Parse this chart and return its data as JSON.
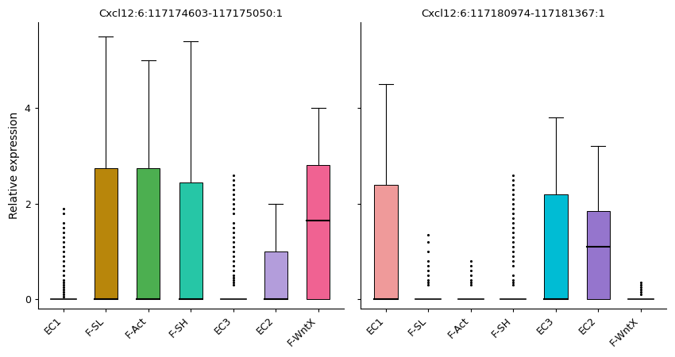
{
  "subplot_titles": [
    "Cxcl12:6:117174603-117175050:1",
    "Cxcl12:6:117180974-117181367:1"
  ],
  "ylabel": "Relative expression",
  "categories": [
    "EC1",
    "F-SL",
    "F-Act",
    "F-SH",
    "EC3",
    "EC2",
    "F-WntX"
  ],
  "cat_colors_p1": {
    "EC1": "#C0392B",
    "F-SL": "#B8860B",
    "F-Act": "#4CAF50",
    "F-SH": "#26C6A6",
    "EC3": "#9B7ED9",
    "EC2": "#B39DDB",
    "F-WntX": "#F06292"
  },
  "cat_colors_p2": {
    "EC1": "#EF9A9A",
    "F-SL": "#B8860B",
    "F-Act": "#4CAF50",
    "F-SH": "#26C6A6",
    "EC3": "#00BCD4",
    "EC2": "#9575CD",
    "F-WntX": "#9B7ED9"
  },
  "panel1": {
    "EC1": {
      "q1": 0.0,
      "med": 0.0,
      "q3": 0.0,
      "whislo": 0.0,
      "whishi": 0.0,
      "show_box": false,
      "fliers": [
        1.9,
        1.8,
        1.6,
        1.5,
        1.4,
        1.3,
        1.2,
        1.1,
        1.0,
        0.9,
        0.8,
        0.7,
        0.6,
        0.5,
        0.4,
        0.35,
        0.3,
        0.25,
        0.2,
        0.15,
        0.1,
        0.05
      ]
    },
    "F-SL": {
      "q1": 0.0,
      "med": 0.0,
      "q3": 2.75,
      "whislo": 0.0,
      "whishi": 5.5,
      "show_box": true,
      "fliers": []
    },
    "F-Act": {
      "q1": 0.0,
      "med": 0.0,
      "q3": 2.75,
      "whislo": 0.0,
      "whishi": 5.0,
      "show_box": true,
      "fliers": []
    },
    "F-SH": {
      "q1": 0.0,
      "med": 0.0,
      "q3": 2.45,
      "whislo": 0.0,
      "whishi": 5.4,
      "show_box": true,
      "fliers": []
    },
    "EC3": {
      "q1": 0.0,
      "med": 0.0,
      "q3": 0.0,
      "whislo": 0.0,
      "whishi": 0.0,
      "show_box": false,
      "fliers": [
        2.6,
        2.5,
        2.4,
        2.3,
        2.2,
        2.1,
        2.0,
        1.9,
        1.8,
        1.6,
        1.5,
        1.4,
        1.3,
        1.2,
        1.1,
        1.0,
        0.9,
        0.8,
        0.7,
        0.6,
        0.5,
        0.45,
        0.4,
        0.35,
        0.3
      ]
    },
    "EC2": {
      "q1": 0.0,
      "med": 0.0,
      "q3": 1.0,
      "whislo": 0.0,
      "whishi": 2.0,
      "show_box": true,
      "fliers": []
    },
    "F-WntX": {
      "q1": 0.0,
      "med": 1.65,
      "q3": 2.8,
      "whislo": 0.0,
      "whishi": 4.0,
      "show_box": true,
      "fliers": []
    }
  },
  "panel2": {
    "EC1": {
      "q1": 0.0,
      "med": 0.0,
      "q3": 2.4,
      "whislo": 0.0,
      "whishi": 4.5,
      "show_box": true,
      "fliers": []
    },
    "F-SL": {
      "q1": 0.0,
      "med": 0.0,
      "q3": 0.0,
      "whislo": 0.0,
      "whishi": 0.0,
      "show_box": false,
      "fliers": [
        1.35,
        1.2,
        1.0,
        0.8,
        0.7,
        0.6,
        0.5,
        0.4,
        0.35,
        0.3
      ]
    },
    "F-Act": {
      "q1": 0.0,
      "med": 0.0,
      "q3": 0.0,
      "whislo": 0.0,
      "whishi": 0.0,
      "show_box": false,
      "fliers": [
        0.8,
        0.7,
        0.6,
        0.5,
        0.4,
        0.35,
        0.3
      ]
    },
    "F-SH": {
      "q1": 0.0,
      "med": 0.0,
      "q3": 0.0,
      "whislo": 0.0,
      "whishi": 0.0,
      "show_box": false,
      "fliers": [
        2.6,
        2.5,
        2.4,
        2.3,
        2.2,
        2.1,
        2.0,
        1.9,
        1.8,
        1.7,
        1.6,
        1.5,
        1.4,
        1.3,
        1.2,
        1.1,
        1.0,
        0.9,
        0.8,
        0.7,
        0.5,
        0.4,
        0.35,
        0.3
      ]
    },
    "EC3": {
      "q1": 0.0,
      "med": 0.0,
      "q3": 2.2,
      "whislo": 0.0,
      "whishi": 3.8,
      "show_box": true,
      "fliers": []
    },
    "EC2": {
      "q1": 0.0,
      "med": 1.1,
      "q3": 1.85,
      "whislo": 0.0,
      "whishi": 3.2,
      "show_box": true,
      "fliers": []
    },
    "F-WntX": {
      "q1": 0.0,
      "med": 0.0,
      "q3": 0.0,
      "whislo": 0.0,
      "whishi": 0.0,
      "show_box": false,
      "fliers": [
        0.35,
        0.3,
        0.25,
        0.2,
        0.15,
        0.1
      ]
    }
  },
  "ylim": [
    -0.2,
    5.8
  ],
  "yticks": [
    0,
    2,
    4
  ],
  "background_color": "#FFFFFF"
}
